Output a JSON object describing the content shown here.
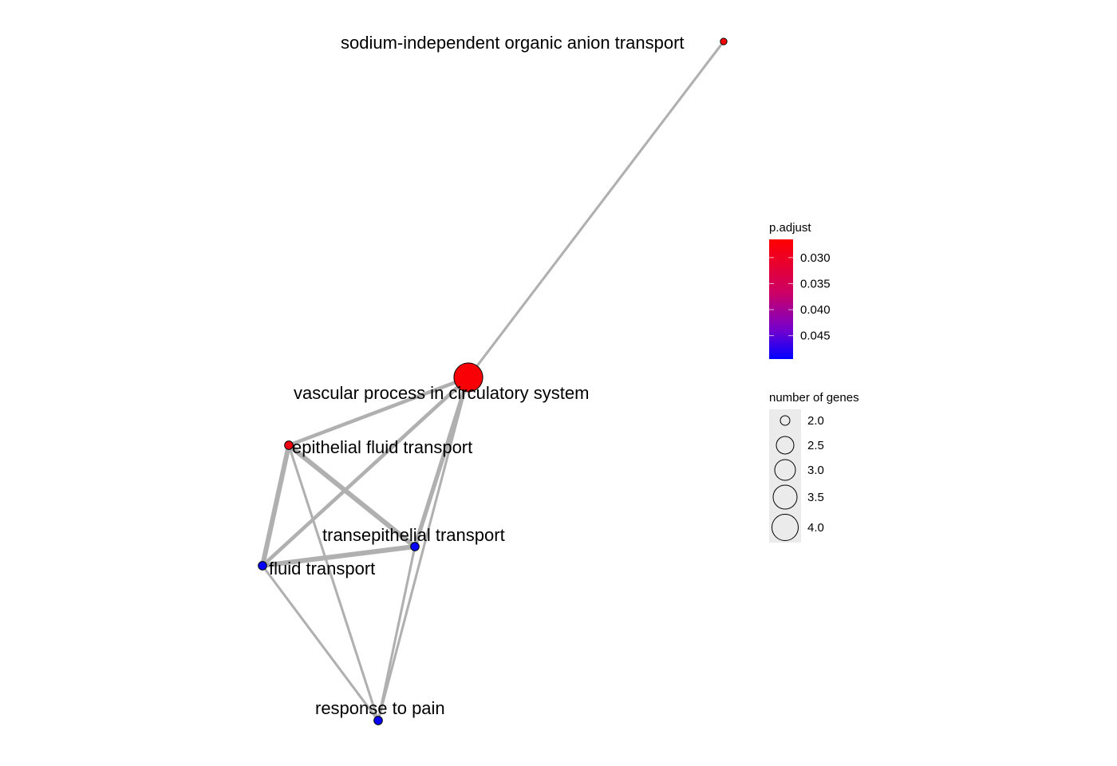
{
  "nodes": [
    {
      "id": "sodium",
      "label": "sodium-independent organic anion transport",
      "genes": 1.6,
      "p_adjust": 0.027
    },
    {
      "id": "vascular",
      "label": "vascular process in circulatory system",
      "genes": 4.0,
      "p_adjust": 0.027
    },
    {
      "id": "epithelial",
      "label": "epithelial fluid transport",
      "genes": 1.8,
      "p_adjust": 0.028
    },
    {
      "id": "transepithelial",
      "label": "transepithelial transport",
      "genes": 1.8,
      "p_adjust": 0.049
    },
    {
      "id": "fluid",
      "label": "fluid transport",
      "genes": 1.8,
      "p_adjust": 0.049
    },
    {
      "id": "pain",
      "label": "response to pain",
      "genes": 1.8,
      "p_adjust": 0.049
    }
  ],
  "edges": [
    {
      "source": "sodium",
      "target": "vascular",
      "weight": 1
    },
    {
      "source": "vascular",
      "target": "epithelial",
      "weight": 2
    },
    {
      "source": "vascular",
      "target": "fluid",
      "weight": 2
    },
    {
      "source": "vascular",
      "target": "transepithelial",
      "weight": 2.5
    },
    {
      "source": "vascular",
      "target": "pain",
      "weight": 1
    },
    {
      "source": "epithelial",
      "target": "transepithelial",
      "weight": 3
    },
    {
      "source": "epithelial",
      "target": "fluid",
      "weight": 3
    },
    {
      "source": "epithelial",
      "target": "pain",
      "weight": 1
    },
    {
      "source": "transepithelial",
      "target": "fluid",
      "weight": 3
    },
    {
      "source": "transepithelial",
      "target": "pain",
      "weight": 1
    },
    {
      "source": "fluid",
      "target": "pain",
      "weight": 1
    }
  ],
  "legend": {
    "color_title": "p.adjust",
    "color_ticks": [
      {
        "value": 0.03,
        "label": "0.030"
      },
      {
        "value": 0.035,
        "label": "0.035"
      },
      {
        "value": 0.04,
        "label": "0.040"
      },
      {
        "value": 0.045,
        "label": "0.045"
      }
    ],
    "color_range": [
      0.0265,
      0.0495
    ],
    "color_high": "#ff0000",
    "color_low": "#0000ff",
    "size_title": "number of genes",
    "size_items": [
      {
        "value": 2.0,
        "label": "2.0"
      },
      {
        "value": 2.5,
        "label": "2.5"
      },
      {
        "value": 3.0,
        "label": "3.0"
      },
      {
        "value": 3.5,
        "label": "3.5"
      },
      {
        "value": 4.0,
        "label": "4.0"
      }
    ]
  },
  "colors": {
    "edge": "#b0b0b0",
    "node_stroke": "#000000",
    "legend_bg": "#ebebeb"
  }
}
